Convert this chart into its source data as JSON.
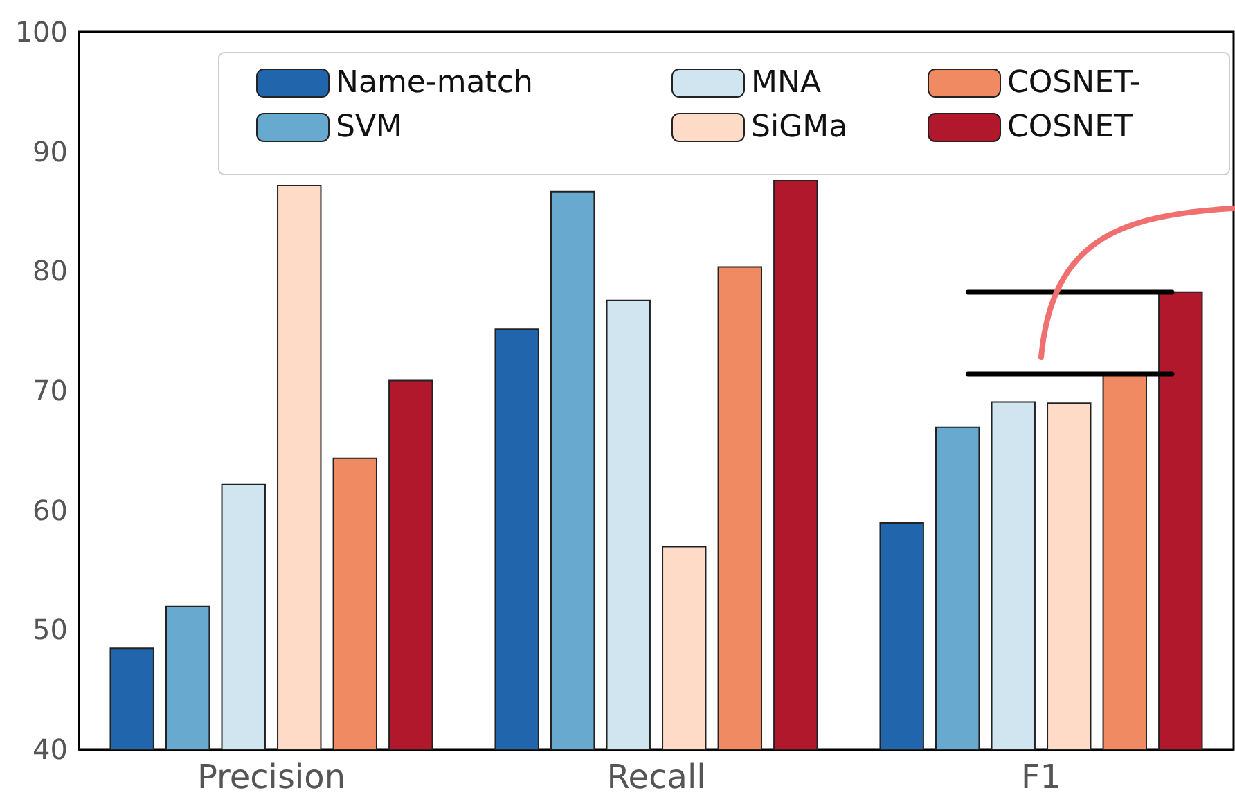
{
  "chart_data": {
    "type": "bar",
    "categories": [
      "Precision",
      "Recall",
      "F1"
    ],
    "series": [
      {
        "name": "Name-match",
        "color": "#2166ac",
        "values": [
          48.5,
          75.2,
          59.0
        ]
      },
      {
        "name": "SVM",
        "color": "#67a9cf",
        "values": [
          52.0,
          86.7,
          67.0
        ]
      },
      {
        "name": "MNA",
        "color": "#d1e5f0",
        "values": [
          62.2,
          77.6,
          69.1
        ]
      },
      {
        "name": "SiGMa",
        "color": "#fddbc7",
        "values": [
          87.2,
          57.0,
          69.0
        ]
      },
      {
        "name": "COSNET-",
        "color": "#ef8a62",
        "values": [
          64.4,
          80.4,
          71.4
        ]
      },
      {
        "name": "COSNET",
        "color": "#b2182b",
        "values": [
          70.9,
          87.6,
          78.3
        ]
      }
    ],
    "ref_lines": [
      {
        "axis": "y",
        "value": 78.3,
        "color": "#000000"
      },
      {
        "axis": "y",
        "value": 71.4,
        "color": "#000000"
      }
    ],
    "ylim": [
      40,
      100
    ],
    "yticks": [
      40,
      50,
      60,
      70,
      80,
      90,
      100
    ],
    "grid": false,
    "legend": "top right"
  }
}
